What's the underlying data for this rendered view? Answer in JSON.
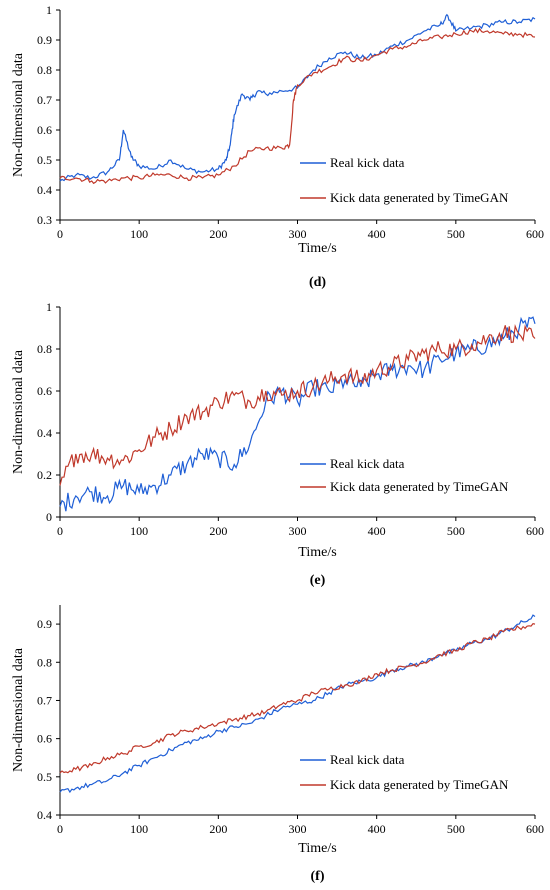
{
  "chart_data": [
    {
      "type": "line",
      "panel_label": "(d)",
      "xlabel": "Time/s",
      "ylabel": "Non-dimensional data",
      "xlim": [
        0,
        600
      ],
      "ylim": [
        0.3,
        1.0
      ],
      "xticks": [
        "0",
        "100",
        "200",
        "300",
        "400",
        "500",
        "600"
      ],
      "yticks": [
        "0.3",
        "0.4",
        "0.5",
        "0.6",
        "0.7",
        "0.8",
        "0.9",
        "1"
      ],
      "legend_position": "bottom-right",
      "series": [
        {
          "name": "Real kick data",
          "color": "#1f5fd6",
          "x": [
            0,
            20,
            40,
            60,
            75,
            80,
            90,
            100,
            120,
            140,
            160,
            180,
            200,
            210,
            215,
            220,
            230,
            240,
            250,
            260,
            280,
            300,
            320,
            340,
            360,
            380,
            400,
            420,
            440,
            460,
            480,
            490,
            500,
            520,
            540,
            560,
            580,
            600
          ],
          "y": [
            0.43,
            0.45,
            0.44,
            0.46,
            0.5,
            0.6,
            0.51,
            0.48,
            0.47,
            0.5,
            0.47,
            0.46,
            0.47,
            0.5,
            0.55,
            0.65,
            0.72,
            0.7,
            0.73,
            0.72,
            0.73,
            0.74,
            0.8,
            0.84,
            0.86,
            0.84,
            0.85,
            0.88,
            0.9,
            0.93,
            0.95,
            0.98,
            0.93,
            0.94,
            0.95,
            0.96,
            0.96,
            0.97
          ]
        },
        {
          "name": "Kick data generated by TimeGAN",
          "color": "#c0392b",
          "x": [
            0,
            20,
            40,
            60,
            80,
            100,
            120,
            140,
            160,
            180,
            200,
            220,
            240,
            260,
            280,
            290,
            295,
            300,
            320,
            340,
            360,
            380,
            400,
            420,
            440,
            460,
            480,
            500,
            520,
            540,
            560,
            580,
            600
          ],
          "y": [
            0.44,
            0.44,
            0.43,
            0.43,
            0.44,
            0.44,
            0.45,
            0.45,
            0.44,
            0.44,
            0.45,
            0.48,
            0.53,
            0.54,
            0.54,
            0.55,
            0.7,
            0.75,
            0.79,
            0.81,
            0.84,
            0.83,
            0.85,
            0.87,
            0.88,
            0.9,
            0.91,
            0.92,
            0.93,
            0.93,
            0.92,
            0.92,
            0.91
          ]
        }
      ]
    },
    {
      "type": "line",
      "panel_label": "(e)",
      "xlabel": "Time/s",
      "ylabel": "Non-dimensional data",
      "xlim": [
        0,
        600
      ],
      "ylim": [
        0,
        1.0
      ],
      "xticks": [
        "0",
        "100",
        "200",
        "300",
        "400",
        "500",
        "600"
      ],
      "yticks": [
        "0",
        "0.2",
        "0.4",
        "0.6",
        "0.8",
        "1"
      ],
      "legend_position": "bottom-right",
      "series": [
        {
          "name": "Real kick data",
          "color": "#1f5fd6",
          "x": [
            0,
            20,
            40,
            60,
            80,
            100,
            120,
            140,
            160,
            180,
            200,
            220,
            240,
            260,
            280,
            300,
            320,
            340,
            360,
            380,
            400,
            420,
            440,
            460,
            480,
            500,
            520,
            540,
            560,
            580,
            600
          ],
          "y": [
            0.05,
            0.1,
            0.12,
            0.1,
            0.15,
            0.12,
            0.15,
            0.2,
            0.25,
            0.3,
            0.28,
            0.25,
            0.35,
            0.55,
            0.6,
            0.55,
            0.62,
            0.6,
            0.65,
            0.62,
            0.68,
            0.7,
            0.72,
            0.7,
            0.75,
            0.78,
            0.8,
            0.82,
            0.85,
            0.9,
            0.92
          ]
        },
        {
          "name": "Kick data generated by TimeGAN",
          "color": "#c0392b",
          "x": [
            0,
            20,
            40,
            60,
            80,
            100,
            120,
            140,
            160,
            180,
            200,
            220,
            240,
            260,
            280,
            300,
            320,
            340,
            360,
            380,
            400,
            420,
            440,
            460,
            480,
            500,
            520,
            540,
            560,
            580,
            600
          ],
          "y": [
            0.15,
            0.3,
            0.3,
            0.28,
            0.27,
            0.32,
            0.38,
            0.42,
            0.48,
            0.5,
            0.55,
            0.58,
            0.55,
            0.6,
            0.58,
            0.6,
            0.62,
            0.65,
            0.68,
            0.65,
            0.7,
            0.72,
            0.75,
            0.78,
            0.8,
            0.8,
            0.82,
            0.85,
            0.88,
            0.87,
            0.85
          ]
        }
      ]
    },
    {
      "type": "line",
      "panel_label": "(f)",
      "xlabel": "Time/s",
      "ylabel": "Non-dimensional data",
      "xlim": [
        0,
        600
      ],
      "ylim": [
        0.4,
        0.95
      ],
      "xticks": [
        "0",
        "100",
        "200",
        "300",
        "400",
        "500",
        "600"
      ],
      "yticks": [
        "0.4",
        "0.5",
        "0.6",
        "0.7",
        "0.8",
        "0.9"
      ],
      "legend_position": "bottom-right",
      "series": [
        {
          "name": "Real kick data",
          "color": "#1f5fd6",
          "x": [
            0,
            20,
            40,
            60,
            80,
            100,
            120,
            140,
            160,
            180,
            200,
            220,
            240,
            260,
            280,
            300,
            320,
            340,
            360,
            380,
            400,
            420,
            440,
            460,
            480,
            500,
            520,
            540,
            560,
            580,
            600
          ],
          "y": [
            0.46,
            0.47,
            0.48,
            0.49,
            0.51,
            0.53,
            0.55,
            0.57,
            0.59,
            0.6,
            0.62,
            0.63,
            0.64,
            0.66,
            0.68,
            0.69,
            0.7,
            0.72,
            0.74,
            0.75,
            0.76,
            0.78,
            0.79,
            0.8,
            0.82,
            0.83,
            0.85,
            0.86,
            0.88,
            0.9,
            0.92
          ]
        },
        {
          "name": "Kick data generated by TimeGAN",
          "color": "#c0392b",
          "x": [
            0,
            20,
            40,
            60,
            80,
            100,
            120,
            140,
            160,
            180,
            200,
            220,
            240,
            260,
            280,
            300,
            320,
            340,
            360,
            380,
            400,
            420,
            440,
            460,
            480,
            500,
            520,
            540,
            560,
            580,
            600
          ],
          "y": [
            0.51,
            0.52,
            0.53,
            0.55,
            0.56,
            0.58,
            0.59,
            0.61,
            0.62,
            0.63,
            0.64,
            0.65,
            0.66,
            0.67,
            0.69,
            0.7,
            0.72,
            0.73,
            0.74,
            0.75,
            0.77,
            0.78,
            0.79,
            0.8,
            0.82,
            0.83,
            0.85,
            0.86,
            0.88,
            0.89,
            0.9
          ]
        }
      ]
    }
  ]
}
